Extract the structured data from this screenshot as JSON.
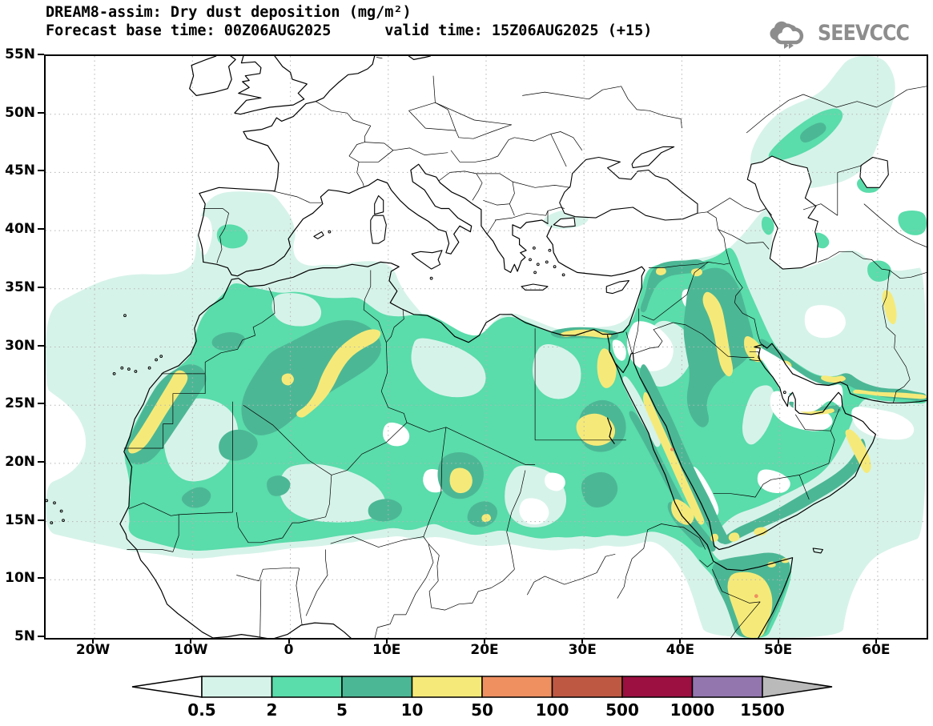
{
  "header": {
    "line1": "DREAM8-assim: Dry dust deposition (mg/m²)",
    "line2": "Forecast base time: 00Z06AUG2025      valid time: 15Z06AUG2025 (+15)"
  },
  "logo": {
    "text": "SEEVCCC",
    "color": "#8d8d8d"
  },
  "axes": {
    "lat": [
      "55N",
      "50N",
      "45N",
      "40N",
      "35N",
      "30N",
      "25N",
      "20N",
      "15N",
      "10N",
      "5N"
    ],
    "lon": [
      "20W",
      "10W",
      "0",
      "10E",
      "20E",
      "30E",
      "40E",
      "50E",
      "60E"
    ]
  },
  "legend": {
    "values": [
      "0.5",
      "2",
      "5",
      "10",
      "50",
      "100",
      "500",
      "1000",
      "1500"
    ],
    "colors": [
      "#d6f3e9",
      "#5adcab",
      "#4cb795",
      "#f5ea79",
      "#ef9061",
      "#bf5843",
      "#9b1040",
      "#9376ae"
    ],
    "underflow_color": "#ffffff",
    "overflow_color": "#bababa",
    "units": "mg/m²"
  },
  "map_palette": {
    "c05": "#d6f3e9",
    "c2": "#5adcab",
    "c5": "#4cb795",
    "c10": "#f5ea79",
    "c50": "#ef9061"
  }
}
